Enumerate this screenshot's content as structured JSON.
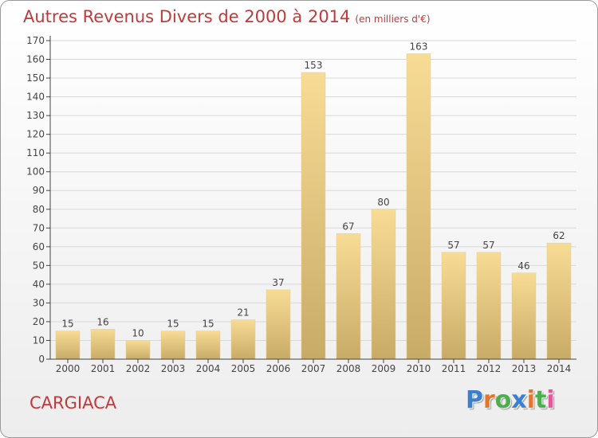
{
  "header": {
    "title": "Autres Revenus Divers de 2000 à 2014",
    "subtitle": "(en milliers d'€)"
  },
  "footer": {
    "commune": "CARGIACA",
    "logo_text": "Proxiti",
    "logo_colors": [
      "#3a7fd0",
      "#e8742a",
      "#4cae4c",
      "#3a7fd0",
      "#e8742a",
      "#4cae4c",
      "#e05a9a"
    ]
  },
  "chart_data": {
    "type": "bar",
    "title": "",
    "xlabel": "",
    "ylabel": "",
    "categories": [
      "2000",
      "2001",
      "2002",
      "2003",
      "2004",
      "2005",
      "2006",
      "2007",
      "2008",
      "2009",
      "2010",
      "2011",
      "2012",
      "2013",
      "2014"
    ],
    "values": [
      15,
      16,
      10,
      15,
      15,
      21,
      37,
      153,
      67,
      80,
      163,
      57,
      57,
      46,
      62
    ],
    "ylim": [
      0,
      170
    ],
    "yticks": [
      0,
      10,
      20,
      30,
      40,
      50,
      60,
      70,
      80,
      90,
      100,
      110,
      120,
      130,
      140,
      150,
      160,
      170
    ],
    "grid": true,
    "bar_color_light": "#f7dc96",
    "bar_color_dark": "#c8ab66",
    "grid_color": "#d8d8d8",
    "axis_color": "#444444",
    "label_color": "#444444",
    "data_labels": true,
    "legend": "none"
  }
}
